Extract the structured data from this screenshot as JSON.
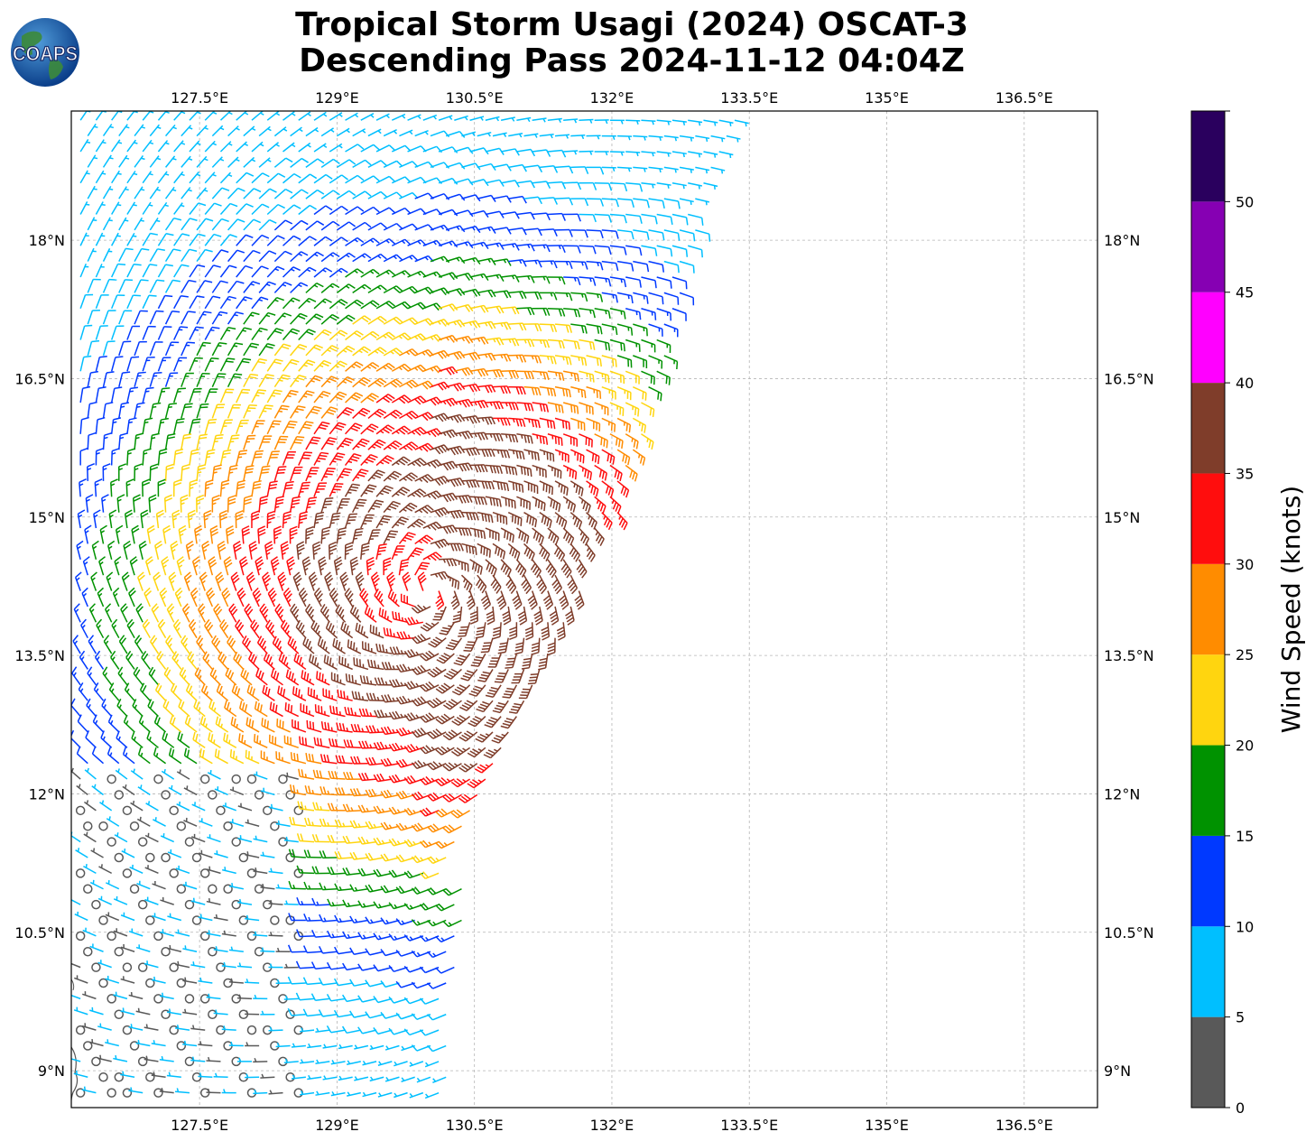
{
  "header": {
    "logo_text": "COAPS",
    "title_line1": "Tropical Storm Usagi (2024) OSCAT-3",
    "title_line2": "Descending Pass 2024-11-12 04:04Z"
  },
  "chart_data": {
    "type": "wind-barb-map",
    "lon_range": [
      126.1,
      137.3
    ],
    "lat_range": [
      8.6,
      19.4
    ],
    "lon_ticks": [
      {
        "value": 127.5,
        "label": "127.5°E"
      },
      {
        "value": 129.0,
        "label": "129°E"
      },
      {
        "value": 130.5,
        "label": "130.5°E"
      },
      {
        "value": 132.0,
        "label": "132°E"
      },
      {
        "value": 133.5,
        "label": "133.5°E"
      },
      {
        "value": 135.0,
        "label": "135°E"
      },
      {
        "value": 136.5,
        "label": "136.5°E"
      }
    ],
    "lat_ticks": [
      {
        "value": 9.0,
        "label": "9°N"
      },
      {
        "value": 10.5,
        "label": "10.5°N"
      },
      {
        "value": 12.0,
        "label": "12°N"
      },
      {
        "value": 13.5,
        "label": "13.5°N"
      },
      {
        "value": 15.0,
        "label": "15°N"
      },
      {
        "value": 16.5,
        "label": "16.5°N"
      },
      {
        "value": 18.0,
        "label": "18°N"
      }
    ],
    "grid": true,
    "storm_center": {
      "lon": 130.0,
      "lat": 14.2
    },
    "colorbar": {
      "label": "Wind Speed (knots)",
      "ticks": [
        0,
        5,
        10,
        15,
        20,
        25,
        30,
        35,
        40,
        45,
        50
      ],
      "bins": [
        {
          "min": 0,
          "max": 5,
          "color": "#595959"
        },
        {
          "min": 5,
          "max": 10,
          "color": "#00bfff"
        },
        {
          "min": 10,
          "max": 15,
          "color": "#0039ff"
        },
        {
          "min": 15,
          "max": 20,
          "color": "#009200"
        },
        {
          "min": 20,
          "max": 25,
          "color": "#ffd50f"
        },
        {
          "min": 25,
          "max": 30,
          "color": "#ff8c00"
        },
        {
          "min": 30,
          "max": 35,
          "color": "#ff0d0d"
        },
        {
          "min": 35,
          "max": 40,
          "color": "#7f3d2a"
        },
        {
          "min": 40,
          "max": 45,
          "color": "#ff00ff"
        },
        {
          "min": 45,
          "max": 50,
          "color": "#8600b3"
        },
        {
          "min": 50,
          "max": 55,
          "color": "#2a005e"
        }
      ]
    }
  }
}
